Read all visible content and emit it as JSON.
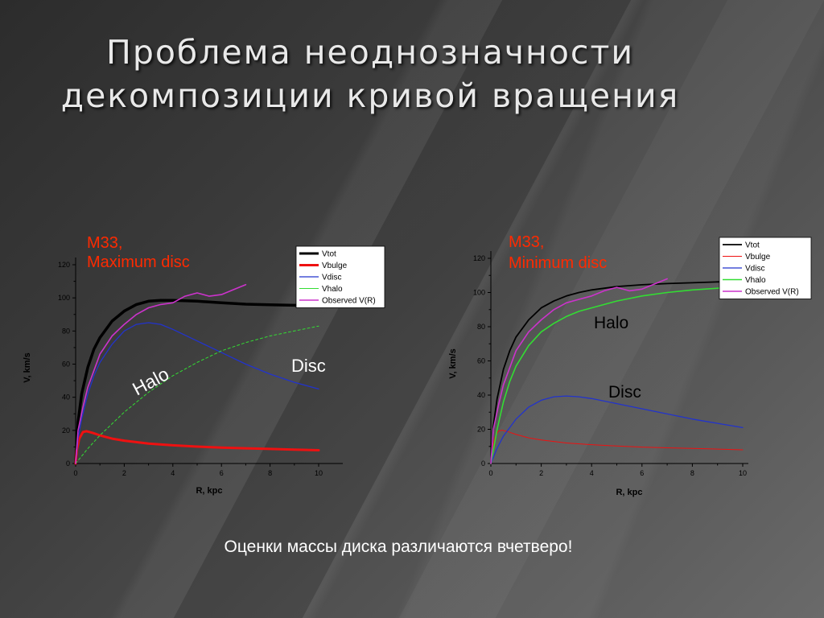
{
  "slide": {
    "title_line1": "Проблема неоднозначности",
    "title_line2": "декомпозиции кривой вращения",
    "caption": "Оценки массы диска различаются вчетверо!"
  },
  "colors": {
    "Vtot": "#000000",
    "Vbulge": "#ee1111",
    "Vdisc": "#2233cc",
    "Vhalo": "#33dd33",
    "Observed": "#cc33cc",
    "annotation_red": "#ff2a00"
  },
  "chart_data": [
    {
      "type": "line",
      "title_lines": [
        "M33,",
        "Maximum disc"
      ],
      "xlabel": "R, kpc",
      "ylabel": "V, km/s",
      "xlim": [
        0,
        10
      ],
      "ylim": [
        0,
        120
      ],
      "xticks": [
        0,
        2,
        4,
        6,
        8,
        10
      ],
      "yticks": [
        0,
        20,
        40,
        60,
        80,
        100,
        120
      ],
      "grid": false,
      "legend_position": "top-right",
      "annotations": [
        "Halo",
        "Disc"
      ],
      "series": [
        {
          "name": "Vtot",
          "color": "#000000",
          "width": 3.5,
          "x": [
            0,
            0.1,
            0.25,
            0.5,
            0.75,
            1,
            1.5,
            2,
            2.5,
            3,
            3.5,
            4,
            4.5,
            5,
            6,
            7,
            8,
            9,
            10
          ],
          "y": [
            0,
            25,
            42,
            58,
            69,
            76,
            86,
            92,
            96,
            98,
            98.5,
            98.5,
            98.3,
            98,
            97,
            96.2,
            95.8,
            95.5,
            95.3
          ]
        },
        {
          "name": "Vbulge",
          "color": "#ee1111",
          "width": 3,
          "x": [
            0,
            0.05,
            0.15,
            0.3,
            0.45,
            0.7,
            1,
            1.5,
            2,
            3,
            4,
            5,
            6,
            7,
            8,
            9,
            10
          ],
          "y": [
            0,
            8,
            15,
            19,
            19.5,
            18.5,
            17,
            15,
            13.8,
            12,
            11,
            10.2,
            9.6,
            9.2,
            8.8,
            8.4,
            8
          ]
        },
        {
          "name": "Vdisc",
          "color": "#2233cc",
          "width": 1.3,
          "x": [
            0,
            0.1,
            0.25,
            0.5,
            0.75,
            1,
            1.5,
            2,
            2.5,
            3,
            3.5,
            4,
            5,
            6,
            7,
            8,
            9,
            10
          ],
          "y": [
            0,
            15,
            27,
            42,
            53,
            61,
            72,
            80,
            84,
            85,
            84,
            81,
            74,
            67,
            60,
            54,
            49,
            45
          ]
        },
        {
          "name": "Vhalo",
          "color": "#33dd33",
          "width": 1,
          "dashed": true,
          "x": [
            0,
            0.5,
            1,
            2,
            3,
            4,
            5,
            6,
            7,
            8,
            9,
            10
          ],
          "y": [
            0,
            9,
            17,
            31,
            43,
            53,
            61,
            68,
            73,
            77,
            80,
            83
          ]
        },
        {
          "name": "Observed V(R)",
          "color": "#cc33cc",
          "width": 1.6,
          "x": [
            0,
            0.1,
            0.3,
            0.5,
            1,
            1.5,
            2,
            2.5,
            3,
            3.5,
            4,
            4.5,
            5,
            5.5,
            6,
            6.5,
            7
          ],
          "y": [
            0,
            20,
            34,
            46,
            66,
            77,
            84,
            90,
            94,
            96,
            97,
            101,
            103,
            101,
            102,
            105,
            108
          ]
        }
      ]
    },
    {
      "type": "line",
      "title_lines": [
        "M33,",
        "Minimum disc"
      ],
      "xlabel": "R, kpc",
      "ylabel": "V, km/s",
      "xlim": [
        0,
        10
      ],
      "ylim": [
        0,
        120
      ],
      "xticks": [
        0,
        2,
        4,
        6,
        8,
        10
      ],
      "yticks": [
        0,
        20,
        40,
        60,
        80,
        100,
        120
      ],
      "grid": false,
      "legend_position": "top-right",
      "annotations": [
        "Halo",
        "Disc"
      ],
      "series": [
        {
          "name": "Vtot",
          "color": "#000000",
          "width": 1.8,
          "x": [
            0,
            0.1,
            0.25,
            0.5,
            0.75,
            1,
            1.5,
            2,
            2.5,
            3,
            3.5,
            4,
            5,
            6,
            7,
            8,
            9,
            10
          ],
          "y": [
            0,
            22,
            38,
            55,
            66,
            74,
            84,
            91,
            95,
            98,
            100,
            101.5,
            103.5,
            104.5,
            105.2,
            105.7,
            106.2,
            106.5
          ]
        },
        {
          "name": "Vbulge",
          "color": "#ee1111",
          "width": 1,
          "x": [
            0,
            0.05,
            0.15,
            0.3,
            0.45,
            0.7,
            1,
            1.5,
            2,
            3,
            4,
            5,
            6,
            7,
            8,
            9,
            10
          ],
          "y": [
            0,
            8,
            15,
            19,
            19.5,
            18.5,
            17,
            15,
            13.8,
            12,
            11,
            10.2,
            9.6,
            9.2,
            8.8,
            8.4,
            8
          ]
        },
        {
          "name": "Vdisc",
          "color": "#2233cc",
          "width": 1.3,
          "x": [
            0,
            0.25,
            0.5,
            1,
            1.5,
            2,
            2.5,
            3,
            3.5,
            4,
            5,
            6,
            7,
            8,
            9,
            10
          ],
          "y": [
            0,
            9,
            16,
            26,
            33,
            37,
            39,
            39.5,
            39,
            38,
            35,
            32,
            29,
            26,
            23.5,
            21
          ]
        },
        {
          "name": "Vhalo",
          "color": "#33dd33",
          "width": 1.6,
          "x": [
            0,
            0.25,
            0.5,
            0.75,
            1,
            1.5,
            2,
            2.5,
            3,
            3.5,
            4,
            5,
            6,
            7,
            8,
            9,
            10
          ],
          "y": [
            0,
            20,
            36,
            48,
            57,
            69,
            77,
            82,
            86,
            89,
            91,
            95,
            98,
            100,
            101.5,
            102.5,
            103.5
          ]
        },
        {
          "name": "Observed V(R)",
          "color": "#cc33cc",
          "width": 1.6,
          "x": [
            0,
            0.1,
            0.3,
            0.5,
            1,
            1.5,
            2,
            2.5,
            3,
            3.5,
            4,
            4.5,
            5,
            5.5,
            6,
            6.5,
            7
          ],
          "y": [
            0,
            20,
            34,
            46,
            66,
            77,
            84,
            90,
            94,
            96,
            98,
            101,
            103,
            101,
            102,
            105,
            108
          ]
        }
      ]
    }
  ]
}
